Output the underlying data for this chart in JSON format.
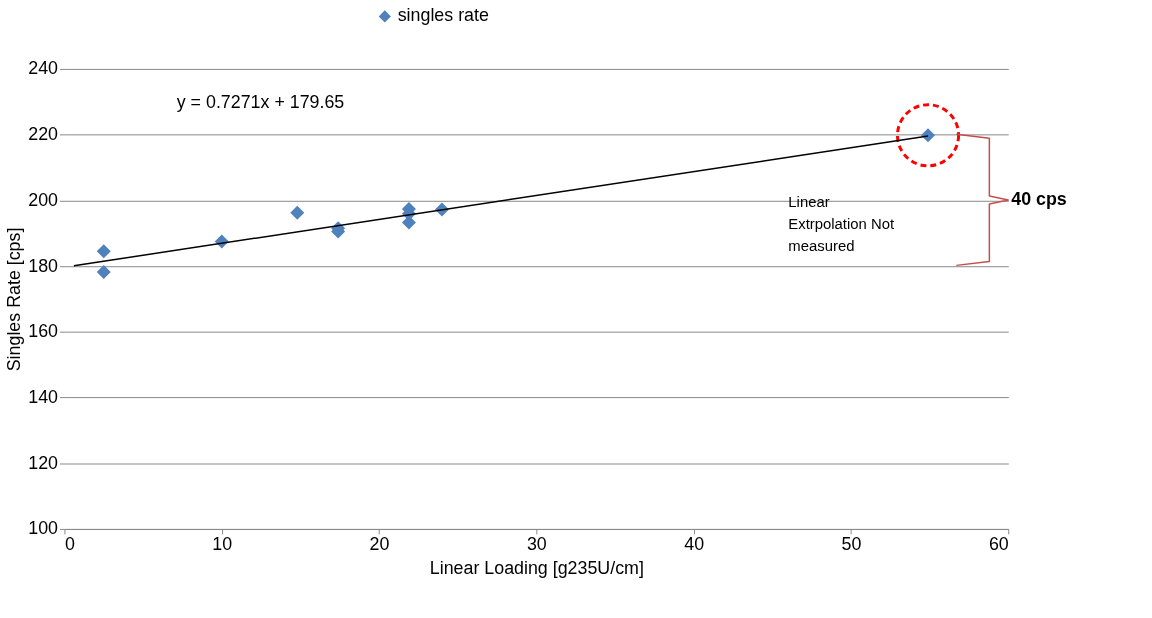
{
  "chart_data": {
    "type": "scatter",
    "xlabel": "Linear Loading [g235U/cm]",
    "ylabel": "Singles Rate [cps]",
    "xlim": [
      0,
      60
    ],
    "xticks": [
      0,
      10,
      20,
      30,
      40,
      50,
      60
    ],
    "ylim": [
      100,
      240
    ],
    "yticks": [
      100,
      120,
      140,
      160,
      180,
      200,
      220,
      240
    ],
    "grid": "y",
    "legend": "top",
    "series": [
      {
        "name": "singles rate",
        "color": "#4f81bd",
        "marker": "diamond",
        "x": [
          2.5,
          2.5,
          10.0,
          14.8,
          17.4,
          17.4,
          21.9,
          21.9,
          21.9,
          24.0,
          54.9
        ],
        "values": [
          184.5,
          178.2,
          187.5,
          196.2,
          191.5,
          190.5,
          197.4,
          195.9,
          193.3,
          197.2,
          219.8
        ]
      },
      {
        "type": "line",
        "color": "#000000",
        "x": [
          0.6,
          54.9
        ],
        "values": [
          180.1,
          219.6
        ]
      }
    ],
    "annotations": [
      "y = 0.7271x + 179.65",
      "Linear Extrpolation Not measured",
      "40 cps"
    ]
  }
}
